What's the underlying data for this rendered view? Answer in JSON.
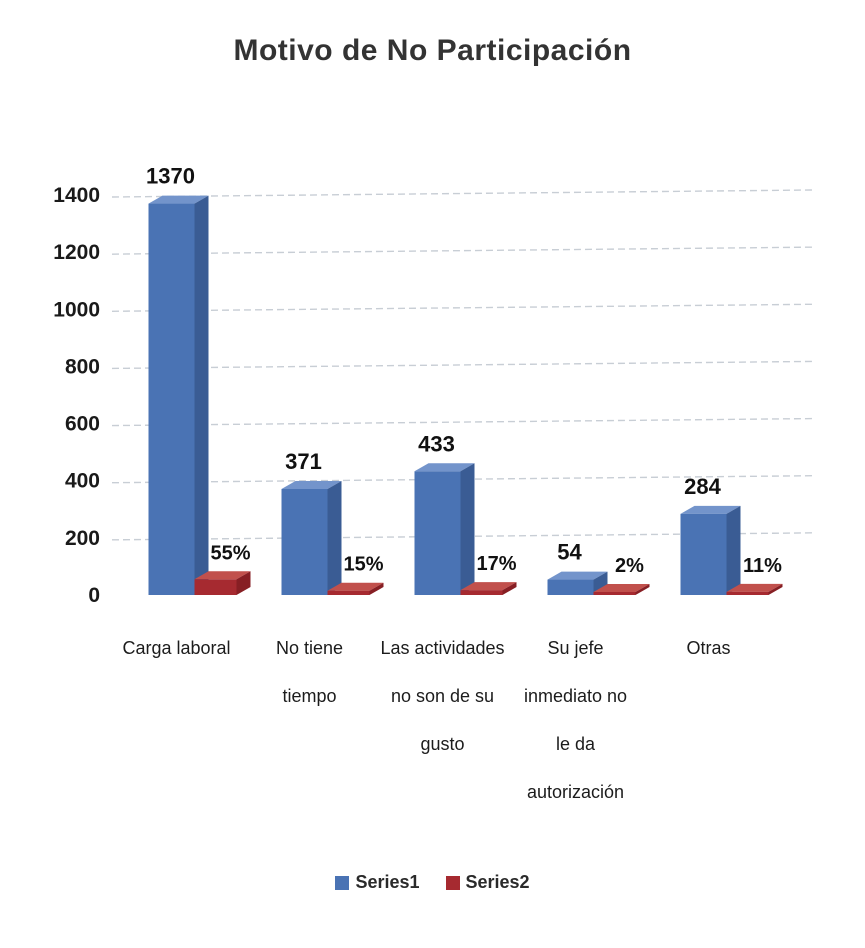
{
  "page": {
    "background": "#ffffff"
  },
  "chart_data": {
    "type": "bar",
    "style": "3d-clustered-column",
    "title": "Motivo de No Participación",
    "categories": [
      "Carga laboral",
      "No tiene tiempo",
      "Las actividades no son de su gusto",
      "Su jefe inmediato no le da autorización",
      "Otras"
    ],
    "categories_wrapped": [
      [
        "Carga laboral"
      ],
      [
        "No tiene",
        "tiempo"
      ],
      [
        "Las actividades",
        "no son de su",
        "gusto"
      ],
      [
        "Su jefe",
        "inmediato no",
        "le da",
        "autorización"
      ],
      [
        "Otras"
      ]
    ],
    "series": [
      {
        "name": "Series1",
        "color": "#4a73b4",
        "color_top": "#7394cb",
        "color_side": "#3a5c94",
        "values": [
          1370,
          371,
          433,
          54,
          284
        ],
        "data_labels": [
          "1370",
          "371",
          "433",
          "54",
          "284"
        ]
      },
      {
        "name": "Series2",
        "color": "#a62a30",
        "color_top": "#c1504c",
        "color_side": "#871f24",
        "values": [
          55,
          15,
          17,
          2,
          11
        ],
        "data_labels": [
          "55%",
          "15%",
          "17%",
          "2%",
          "11%"
        ]
      }
    ],
    "xlabel": "",
    "ylabel": "",
    "ylim": [
      0,
      1400
    ],
    "yticks": [
      0,
      200,
      400,
      600,
      800,
      1000,
      1200,
      1400
    ],
    "grid": true,
    "gridline_color": "#b6bec8",
    "label_color": "#1a1a1a",
    "legend_position": "bottom"
  }
}
